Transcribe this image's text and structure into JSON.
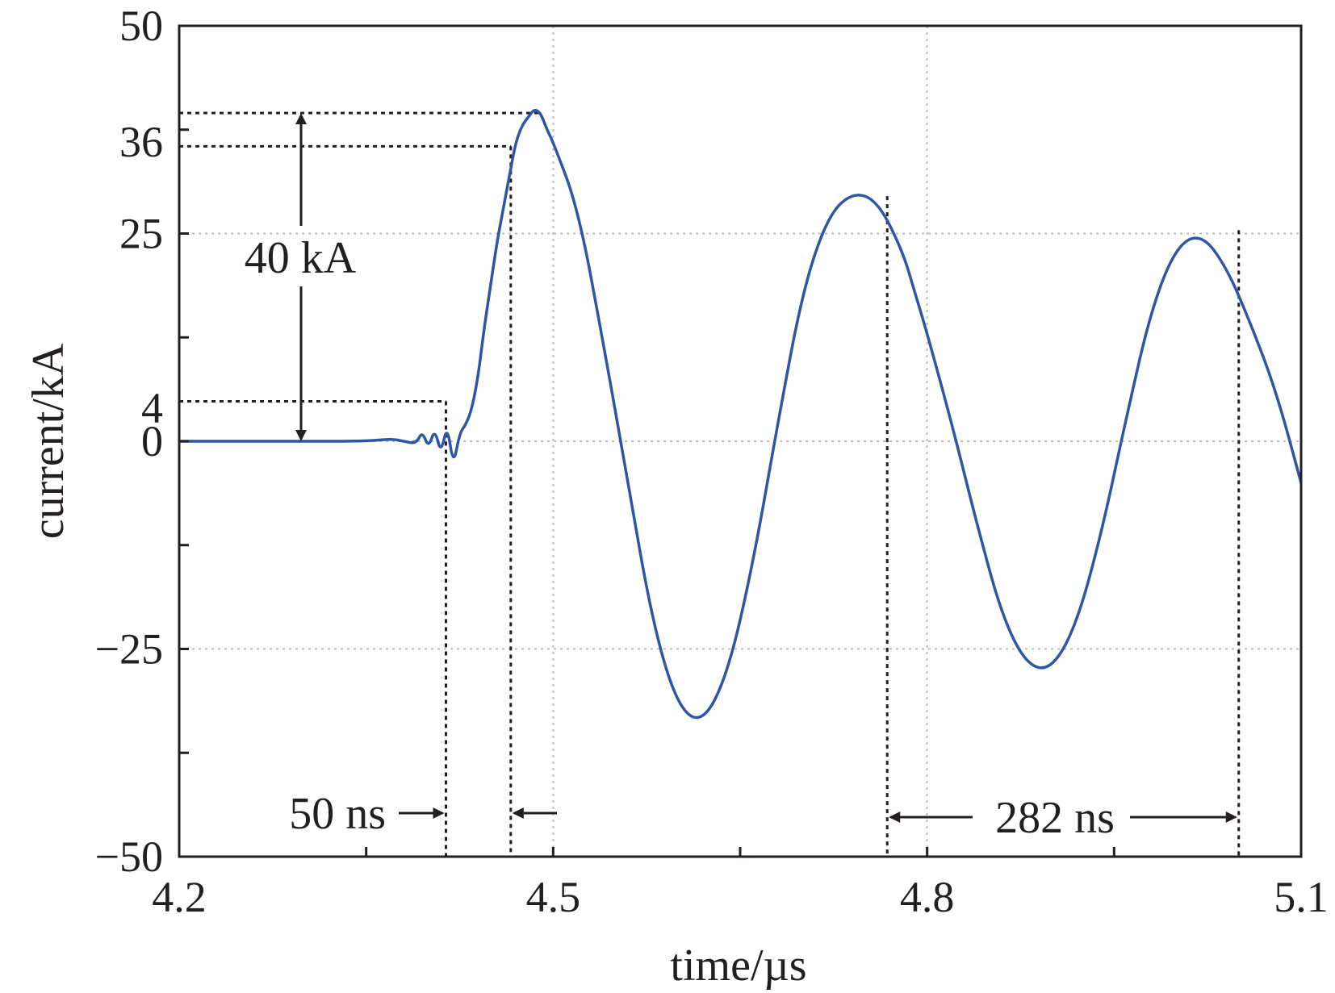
{
  "chart_data": {
    "type": "line",
    "title": "",
    "xlabel": "time/µs",
    "ylabel": "current/kA",
    "xlim": [
      4.2,
      5.1
    ],
    "ylim": [
      -50,
      50
    ],
    "x_ticks": [
      4.2,
      4.5,
      4.8,
      5.1
    ],
    "x_tick_labels": [
      "4.2",
      "4.5",
      "4.8",
      "5.1"
    ],
    "y_ticks": [
      -50,
      -25,
      0,
      4,
      25,
      36,
      50
    ],
    "y_tick_labels": [
      "−50",
      "−25",
      "0",
      "4",
      "25",
      "36",
      "50"
    ],
    "grid": true,
    "series": [
      {
        "name": "current",
        "color": "#2e56a6",
        "x": [
          4.2,
          4.25,
          4.3,
          4.35,
          4.37,
          4.38,
          4.39,
          4.395,
          4.4,
          4.405,
          4.41,
          4.415,
          4.42,
          4.425,
          4.43,
          4.435,
          4.44,
          4.445,
          4.45,
          4.455,
          4.46,
          4.465,
          4.47,
          4.475,
          4.48,
          4.485,
          4.49,
          4.495,
          4.5,
          4.52,
          4.54,
          4.56,
          4.58,
          4.6,
          4.62,
          4.64,
          4.66,
          4.68,
          4.7,
          4.72,
          4.74,
          4.76,
          4.78,
          4.79,
          4.8,
          4.82,
          4.84,
          4.86,
          4.88,
          4.9,
          4.92,
          4.94,
          4.96,
          4.98,
          5.0,
          5.02,
          5.04,
          5.06,
          5.08,
          5.1
        ],
        "values": [
          0,
          0,
          0,
          0,
          0.3,
          0,
          -0.3,
          1.2,
          -0.8,
          1.5,
          -1.5,
          2.0,
          -3.0,
          1.0,
          2.0,
          4.0,
          8.0,
          14.0,
          19.0,
          24.0,
          28.0,
          32.0,
          36.0,
          38.0,
          39.0,
          40.0,
          39.5,
          37.5,
          36.0,
          28.0,
          12.0,
          -5.0,
          -22.0,
          -32.0,
          -34.0,
          -28.0,
          -15.0,
          2.0,
          18.0,
          27.0,
          30.0,
          29.0,
          23.0,
          18.0,
          13.0,
          2.0,
          -10.0,
          -21.0,
          -27.0,
          -27.5,
          -22.0,
          -11.0,
          3.0,
          16.0,
          23.5,
          25.0,
          21.0,
          14.0,
          6.0,
          -5.0
        ]
      }
    ],
    "annotations": [
      {
        "text": "40 kA",
        "x": 4.295,
        "y": 22,
        "type": "vertical-span",
        "y_from": 0,
        "y_to": 39.5
      },
      {
        "text": "50 ns",
        "type": "duration",
        "x_from": 4.414,
        "x_to": 4.466
      },
      {
        "text": "282 ns",
        "type": "duration",
        "x_from": 4.768,
        "x_to": 5.05
      }
    ],
    "reference_lines": {
      "horizontal": [
        {
          "y": 39.5,
          "x_from": 4.2,
          "x_to": 4.488
        },
        {
          "y": 35.5,
          "x_from": 4.2,
          "x_to": 4.466
        },
        {
          "y": 4.8,
          "x_from": 4.2,
          "x_to": 4.414
        }
      ],
      "vertical": [
        4.414,
        4.466,
        4.768,
        5.05
      ]
    }
  }
}
